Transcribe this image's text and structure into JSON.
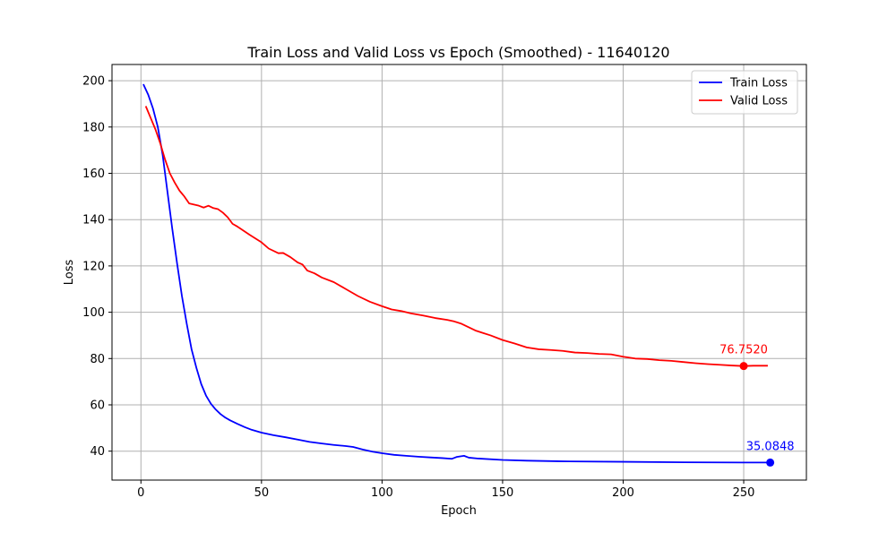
{
  "chart_data": {
    "type": "line",
    "title": "Train Loss and Valid Loss vs Epoch (Smoothed) - 11640120",
    "xlabel": "Epoch",
    "ylabel": "Loss",
    "xlim": [
      -12,
      276
    ],
    "ylim": [
      27.5,
      207
    ],
    "xticks": [
      0,
      50,
      100,
      150,
      200,
      250
    ],
    "yticks": [
      40,
      60,
      80,
      100,
      120,
      140,
      160,
      180,
      200
    ],
    "grid": true,
    "legend_position": "top-right",
    "series": [
      {
        "name": "Train Loss",
        "color": "#0000ff",
        "points": [
          [
            1,
            198.5
          ],
          [
            3,
            194
          ],
          [
            5,
            188
          ],
          [
            7,
            180
          ],
          [
            9,
            168
          ],
          [
            11,
            152
          ],
          [
            13,
            136
          ],
          [
            15,
            121
          ],
          [
            17,
            107
          ],
          [
            19,
            95
          ],
          [
            21,
            84
          ],
          [
            23,
            76
          ],
          [
            25,
            69
          ],
          [
            27,
            64
          ],
          [
            29,
            60.5
          ],
          [
            31,
            58
          ],
          [
            33,
            56
          ],
          [
            35,
            54.5
          ],
          [
            37,
            53.3
          ],
          [
            40,
            51.8
          ],
          [
            43,
            50.4
          ],
          [
            46,
            49.2
          ],
          [
            50,
            48
          ],
          [
            55,
            46.9
          ],
          [
            60,
            46
          ],
          [
            65,
            45
          ],
          [
            70,
            44
          ],
          [
            75,
            43.3
          ],
          [
            80,
            42.7
          ],
          [
            85,
            42.2
          ],
          [
            88,
            41.8
          ],
          [
            92,
            40.7
          ],
          [
            96,
            39.8
          ],
          [
            100,
            39.1
          ],
          [
            105,
            38.4
          ],
          [
            110,
            38
          ],
          [
            115,
            37.6
          ],
          [
            120,
            37.3
          ],
          [
            125,
            37
          ],
          [
            129,
            36.7
          ],
          [
            131,
            37.5
          ],
          [
            134,
            38
          ],
          [
            136,
            37.2
          ],
          [
            140,
            36.8
          ],
          [
            150,
            36.2
          ],
          [
            160,
            35.9
          ],
          [
            175,
            35.6
          ],
          [
            200,
            35.4
          ],
          [
            225,
            35.2
          ],
          [
            250,
            35.1
          ],
          [
            261,
            35.0848
          ]
        ],
        "end_label": "35.0848"
      },
      {
        "name": "Valid Loss",
        "color": "#ff0000",
        "points": [
          [
            2,
            189
          ],
          [
            4,
            184
          ],
          [
            6,
            179
          ],
          [
            8,
            173
          ],
          [
            10,
            166
          ],
          [
            12,
            160
          ],
          [
            14,
            156
          ],
          [
            16,
            152.5
          ],
          [
            18,
            150
          ],
          [
            20,
            147
          ],
          [
            22,
            146.5
          ],
          [
            24,
            146
          ],
          [
            26,
            145.2
          ],
          [
            28,
            146
          ],
          [
            30,
            145
          ],
          [
            32,
            144.5
          ],
          [
            34,
            143
          ],
          [
            36,
            141
          ],
          [
            38,
            138.2
          ],
          [
            40,
            137
          ],
          [
            45,
            133.5
          ],
          [
            50,
            130.2
          ],
          [
            53,
            127.5
          ],
          [
            57,
            125.5
          ],
          [
            59,
            125.6
          ],
          [
            62,
            123.8
          ],
          [
            65,
            121.5
          ],
          [
            67,
            120.6
          ],
          [
            69,
            118
          ],
          [
            72,
            116.8
          ],
          [
            75,
            115
          ],
          [
            80,
            113
          ],
          [
            85,
            110
          ],
          [
            90,
            107
          ],
          [
            95,
            104.5
          ],
          [
            100,
            102.6
          ],
          [
            104,
            101.2
          ],
          [
            108,
            100.5
          ],
          [
            112,
            99.5
          ],
          [
            117,
            98.6
          ],
          [
            122,
            97.5
          ],
          [
            127,
            96.7
          ],
          [
            130,
            96
          ],
          [
            133,
            95
          ],
          [
            136,
            93.5
          ],
          [
            139,
            92
          ],
          [
            142,
            91
          ],
          [
            145,
            90
          ],
          [
            150,
            88
          ],
          [
            155,
            86.5
          ],
          [
            160,
            84.8
          ],
          [
            165,
            84
          ],
          [
            170,
            83.7
          ],
          [
            175,
            83.3
          ],
          [
            180,
            82.6
          ],
          [
            185,
            82.4
          ],
          [
            190,
            82
          ],
          [
            195,
            81.8
          ],
          [
            200,
            80.8
          ],
          [
            205,
            80
          ],
          [
            210,
            79.8
          ],
          [
            215,
            79.3
          ],
          [
            220,
            79
          ],
          [
            225,
            78.5
          ],
          [
            230,
            78
          ],
          [
            235,
            77.6
          ],
          [
            240,
            77.3
          ],
          [
            245,
            77
          ],
          [
            250,
            76.752
          ],
          [
            254,
            76.9
          ],
          [
            260,
            76.9
          ]
        ],
        "end_label": "76.7520",
        "marker_point": [
          250,
          76.752
        ]
      }
    ]
  }
}
